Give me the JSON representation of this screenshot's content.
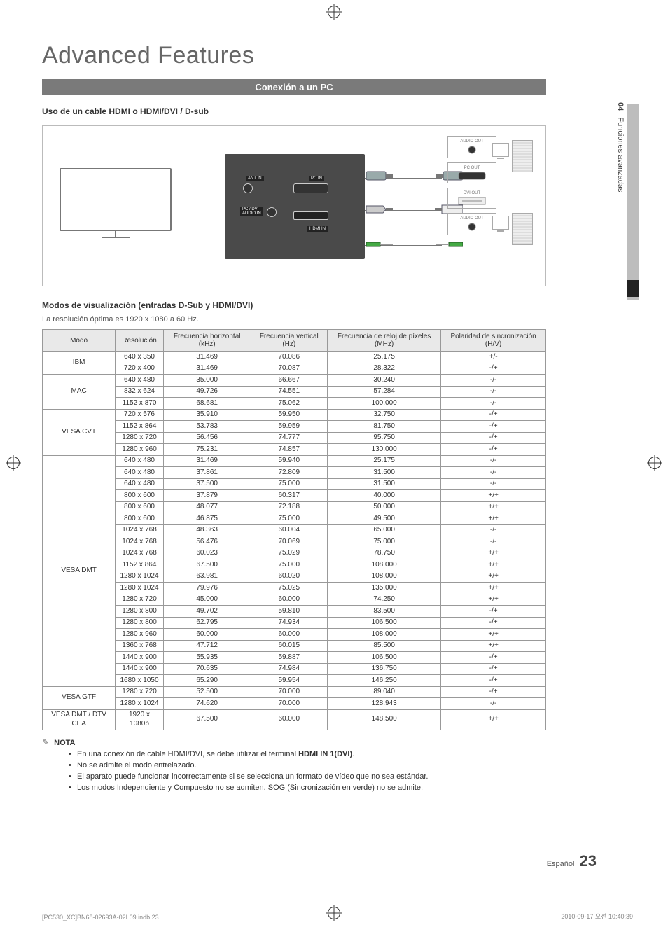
{
  "page_title": "Advanced Features",
  "band_title": "Conexión a un PC",
  "side_tab": {
    "section_num": "04",
    "section_label": "Funciones avanzadas"
  },
  "subhead_cable": "Uso de un cable HDMI o HDMI/DVI / D-sub",
  "diagram_labels": {
    "ant_in": "ANT IN",
    "pc_in": "PC IN",
    "pc_dvi_audio_in": "PC / DVI\nAUDIO IN",
    "hdmi_in": "HDMI IN",
    "audio_out": "AUDIO OUT",
    "pc_out": "PC OUT",
    "dvi_out": "DVI OUT"
  },
  "subhead_modes": "Modos de visualización (entradas D-Sub y HDMI/DVI)",
  "hint_text": "La resolución óptima es 1920 x 1080 a 60 Hz.",
  "table": {
    "header_bg": "#e9e9e9",
    "border_color": "#999999",
    "font_size": 10,
    "columns": [
      "Modo",
      "Resolución",
      "Frecuencia horizontal (kHz)",
      "Frecuencia vertical (Hz)",
      "Frecuencia de reloj de píxeles (MHz)",
      "Polaridad de sincronización (H/V)"
    ],
    "groups": [
      {
        "mode": "IBM",
        "rows": [
          [
            "640 x 350",
            "31.469",
            "70.086",
            "25.175",
            "+/-"
          ],
          [
            "720 x 400",
            "31.469",
            "70.087",
            "28.322",
            "-/+"
          ]
        ]
      },
      {
        "mode": "MAC",
        "rows": [
          [
            "640 x 480",
            "35.000",
            "66.667",
            "30.240",
            "-/-"
          ],
          [
            "832 x 624",
            "49.726",
            "74.551",
            "57.284",
            "-/-"
          ],
          [
            "1152 x 870",
            "68.681",
            "75.062",
            "100.000",
            "-/-"
          ]
        ]
      },
      {
        "mode": "VESA CVT",
        "rows": [
          [
            "720 x 576",
            "35.910",
            "59.950",
            "32.750",
            "-/+"
          ],
          [
            "1152 x 864",
            "53.783",
            "59.959",
            "81.750",
            "-/+"
          ],
          [
            "1280 x 720",
            "56.456",
            "74.777",
            "95.750",
            "-/+"
          ],
          [
            "1280 x 960",
            "75.231",
            "74.857",
            "130.000",
            "-/+"
          ]
        ]
      },
      {
        "mode": "VESA DMT",
        "rows": [
          [
            "640 x 480",
            "31.469",
            "59.940",
            "25.175",
            "-/-"
          ],
          [
            "640 x 480",
            "37.861",
            "72.809",
            "31.500",
            "-/-"
          ],
          [
            "640 x 480",
            "37.500",
            "75.000",
            "31.500",
            "-/-"
          ],
          [
            "800 x 600",
            "37.879",
            "60.317",
            "40.000",
            "+/+"
          ],
          [
            "800 x 600",
            "48.077",
            "72.188",
            "50.000",
            "+/+"
          ],
          [
            "800 x 600",
            "46.875",
            "75.000",
            "49.500",
            "+/+"
          ],
          [
            "1024 x 768",
            "48.363",
            "60.004",
            "65.000",
            "-/-"
          ],
          [
            "1024 x 768",
            "56.476",
            "70.069",
            "75.000",
            "-/-"
          ],
          [
            "1024 x 768",
            "60.023",
            "75.029",
            "78.750",
            "+/+"
          ],
          [
            "1152 x 864",
            "67.500",
            "75.000",
            "108.000",
            "+/+"
          ],
          [
            "1280 x 1024",
            "63.981",
            "60.020",
            "108.000",
            "+/+"
          ],
          [
            "1280 x 1024",
            "79.976",
            "75.025",
            "135.000",
            "+/+"
          ],
          [
            "1280 x 720",
            "45.000",
            "60.000",
            "74.250",
            "+/+"
          ],
          [
            "1280 x 800",
            "49.702",
            "59.810",
            "83.500",
            "-/+"
          ],
          [
            "1280 x 800",
            "62.795",
            "74.934",
            "106.500",
            "-/+"
          ],
          [
            "1280 x 960",
            "60.000",
            "60.000",
            "108.000",
            "+/+"
          ],
          [
            "1360 x 768",
            "47.712",
            "60.015",
            "85.500",
            "+/+"
          ],
          [
            "1440 x 900",
            "55.935",
            "59.887",
            "106.500",
            "-/+"
          ],
          [
            "1440 x 900",
            "70.635",
            "74.984",
            "136.750",
            "-/+"
          ],
          [
            "1680 x 1050",
            "65.290",
            "59.954",
            "146.250",
            "-/+"
          ]
        ]
      },
      {
        "mode": "VESA GTF",
        "rows": [
          [
            "1280 x 720",
            "52.500",
            "70.000",
            "89.040",
            "-/+"
          ],
          [
            "1280 x 1024",
            "74.620",
            "70.000",
            "128.943",
            "-/-"
          ]
        ]
      },
      {
        "mode": "VESA DMT / DTV CEA",
        "rows": [
          [
            "1920 x 1080p",
            "67.500",
            "60.000",
            "148.500",
            "+/+"
          ]
        ]
      }
    ]
  },
  "note_label": "NOTA",
  "notes": [
    "En una conexión de cable HDMI/DVI, se debe utilizar el terminal HDMI IN 1(DVI).",
    "No se admite el modo entrelazado.",
    "El aparato puede funcionar incorrectamente si se selecciona un formato de vídeo que no sea estándar.",
    "Los modos Independiente y Compuesto no se admiten. SOG (Sincronización en verde) no se admite."
  ],
  "footer": {
    "lang": "Español",
    "page_num": "23",
    "doc_ref_left": "[PC530_XC]BN68-02693A-02L09.indb   23",
    "doc_ref_right": "2010-09-17   오전 10:40:39"
  },
  "colors": {
    "band_bg": "#7a7a7a",
    "band_text": "#ffffff",
    "title_color": "#666666",
    "panel_bg": "#4a4a4a",
    "side_gray": "#bdbdbd",
    "side_black": "#222222"
  }
}
